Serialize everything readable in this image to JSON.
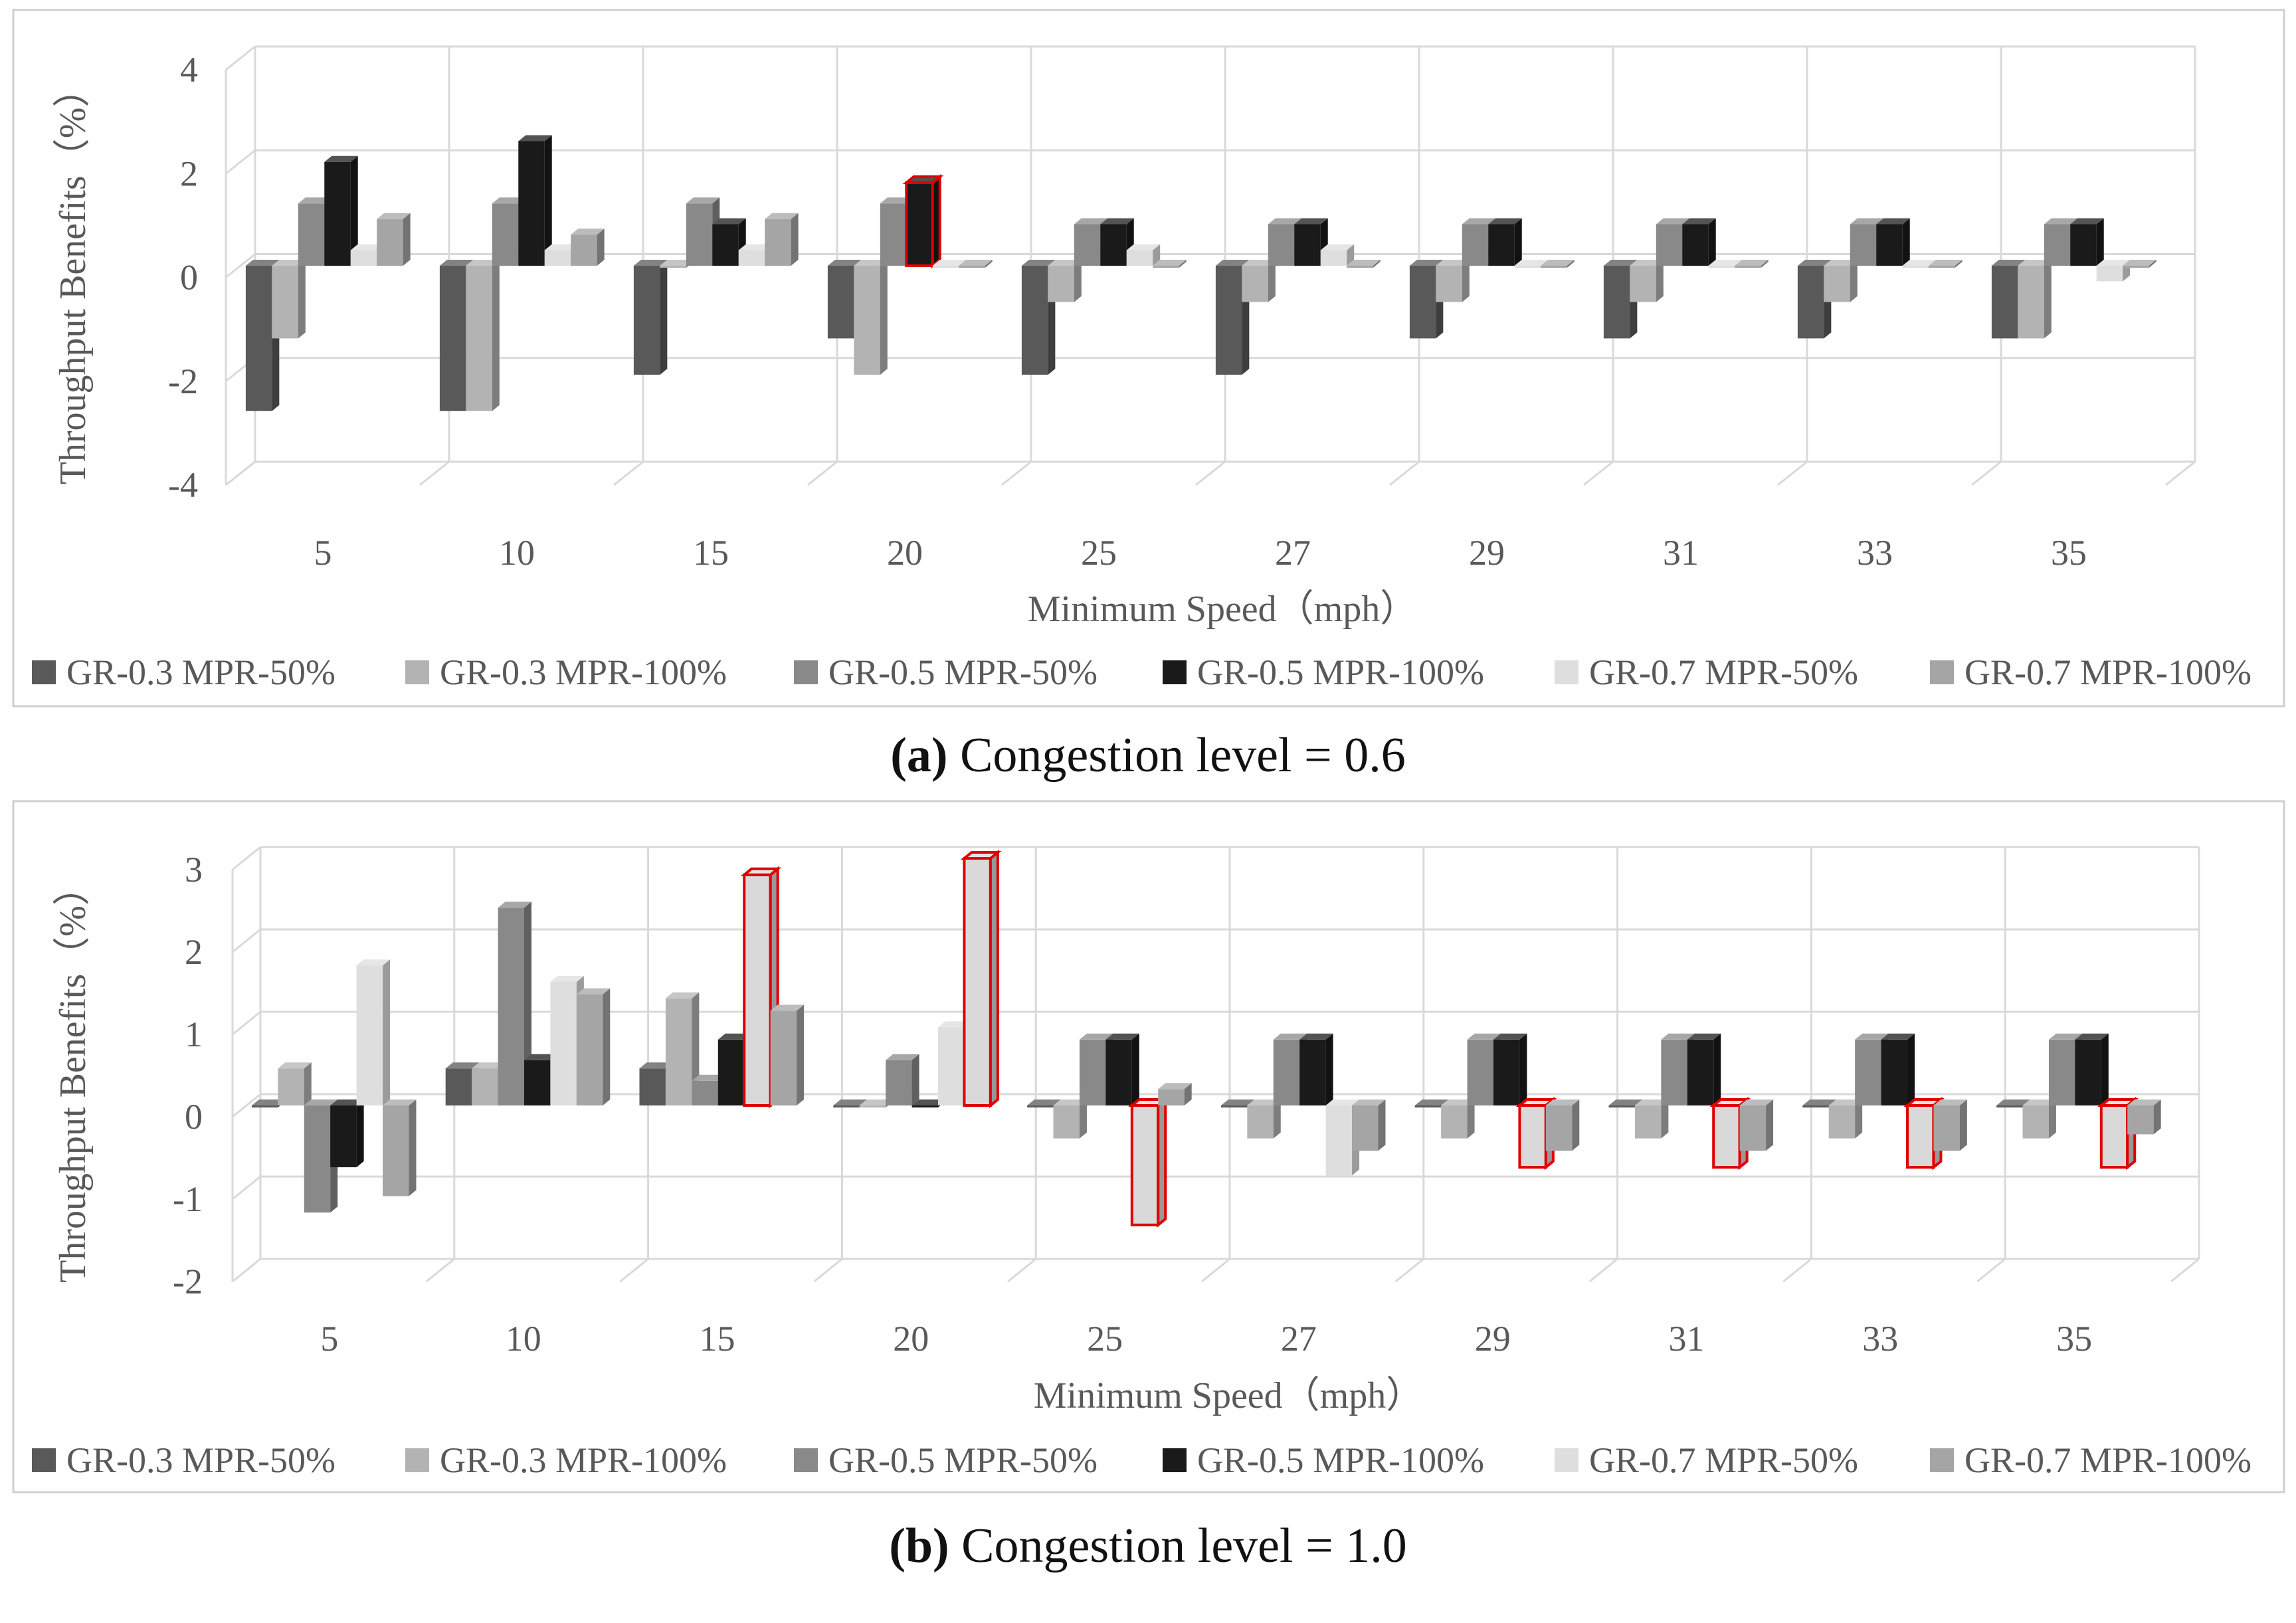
{
  "chart_data": [
    {
      "type": "bar",
      "title": "",
      "xlabel": "Minimum Speed（mph）",
      "ylabel": "Throughput Benefits（%）",
      "ylim": [
        -4,
        4
      ],
      "yticks": [
        "-4",
        "-2",
        "0",
        "2",
        "4"
      ],
      "categories": [
        "5",
        "10",
        "15",
        "20",
        "25",
        "27",
        "29",
        "31",
        "33",
        "35"
      ],
      "series": [
        {
          "name": "GR-0.3 MPR-50%",
          "color": "#595959",
          "values": [
            -2.8,
            -2.8,
            -2.1,
            -1.4,
            -2.1,
            -2.1,
            -1.4,
            -1.4,
            -1.4,
            -1.4
          ]
        },
        {
          "name": "GR-0.3 MPR-100%",
          "color": "#b3b3b3",
          "values": [
            -1.4,
            -2.8,
            0,
            -2.1,
            -0.7,
            -0.7,
            -0.7,
            -0.7,
            -0.7,
            -1.4
          ]
        },
        {
          "name": "GR-0.5 MPR-50%",
          "color": "#898989",
          "values": [
            1.2,
            1.2,
            1.2,
            1.2,
            0.8,
            0.8,
            0.8,
            0.8,
            0.8,
            0.8
          ]
        },
        {
          "name": "GR-0.5 MPR-100%",
          "color": "#1a1a1a",
          "values": [
            2.0,
            2.4,
            0.8,
            1.6,
            0.8,
            0.8,
            0.8,
            0.8,
            0.8,
            0.8
          ],
          "highlight": [
            3
          ]
        },
        {
          "name": "GR-0.7 MPR-50%",
          "color": "#dedede",
          "values": [
            0.3,
            0.3,
            0.3,
            0,
            0.3,
            0.3,
            0,
            0,
            0,
            -0.3
          ]
        },
        {
          "name": "GR-0.7 MPR-100%",
          "color": "#a5a5a5",
          "values": [
            0.9,
            0.6,
            0.9,
            0,
            0,
            0,
            0,
            0,
            0,
            0
          ]
        }
      ],
      "legend_position": "bottom",
      "caption_label": "(a)",
      "caption_text": " Congestion level = 0.6"
    },
    {
      "type": "bar",
      "title": "",
      "xlabel": "Minimum Speed（mph）",
      "ylabel": "Throughput Benefits（%）",
      "ylim": [
        -2,
        3
      ],
      "yticks": [
        "-2",
        "-1",
        "0",
        "1",
        "2",
        "3"
      ],
      "categories": [
        "5",
        "10",
        "15",
        "20",
        "25",
        "27",
        "29",
        "31",
        "33",
        "35"
      ],
      "series": [
        {
          "name": "GR-0.3 MPR-50%",
          "color": "#595959",
          "values": [
            0,
            0.45,
            0.45,
            0,
            0,
            0,
            0,
            0,
            0,
            0
          ]
        },
        {
          "name": "GR-0.3 MPR-100%",
          "color": "#b3b3b3",
          "values": [
            0.45,
            0.45,
            1.3,
            0,
            -0.4,
            -0.4,
            -0.4,
            -0.4,
            -0.4,
            -0.4
          ]
        },
        {
          "name": "GR-0.5 MPR-50%",
          "color": "#898989",
          "values": [
            -1.3,
            2.4,
            0.3,
            0.55,
            0.8,
            0.8,
            0.8,
            0.8,
            0.8,
            0.8
          ]
        },
        {
          "name": "GR-0.5 MPR-100%",
          "color": "#1a1a1a",
          "values": [
            -0.75,
            0.55,
            0.8,
            0,
            0.8,
            0.8,
            0.8,
            0.8,
            0.8,
            0.8
          ]
        },
        {
          "name": "GR-0.7 MPR-50%",
          "color": "#dedede",
          "values": [
            1.7,
            1.5,
            2.8,
            0.95,
            -1.45,
            -0.85,
            -0.75,
            -0.75,
            -0.75,
            -0.75
          ],
          "highlight": [
            2,
            4,
            6,
            7,
            8,
            9
          ]
        },
        {
          "name": "GR-0.7 MPR-100%",
          "color": "#a5a5a5",
          "values": [
            -1.1,
            1.35,
            1.15,
            3.0,
            0.2,
            -0.55,
            -0.55,
            -0.55,
            -0.55,
            -0.35
          ],
          "highlight": [
            3
          ]
        }
      ],
      "legend_position": "bottom",
      "caption_label": "(b)",
      "caption_text": " Congestion level = 1.0"
    }
  ]
}
